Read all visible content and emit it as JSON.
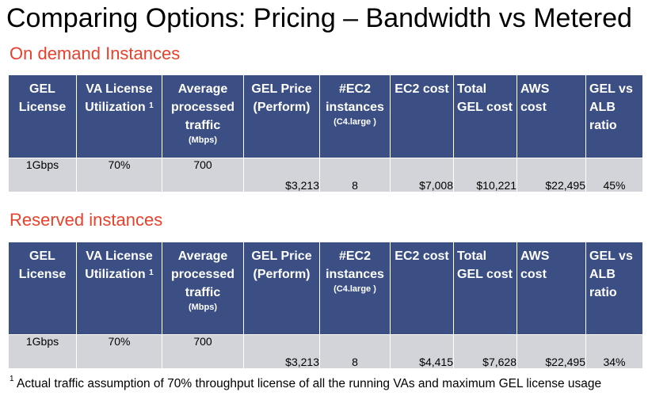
{
  "title": "Comparing Options: Pricing – Bandwidth vs Metered",
  "headers": {
    "gel_license": [
      "GEL",
      "License"
    ],
    "va_license": [
      "VA License",
      "Utilization"
    ],
    "va_license_sup": "1",
    "avg_traffic": [
      "Average",
      "processed",
      "traffic"
    ],
    "avg_traffic_unit": "(Mbps)",
    "gel_price": [
      "GEL Price",
      "(Perform)"
    ],
    "ec2_count": [
      "#EC2",
      "instances"
    ],
    "ec2_count_sub": "(C4.large )",
    "ec2_cost": "EC2 cost",
    "total_gel": [
      "Total",
      "GEL cost"
    ],
    "aws_cost": [
      "AWS",
      "cost"
    ],
    "ratio": [
      "GEL vs",
      "ALB",
      "ratio"
    ]
  },
  "tables": [
    {
      "section_label": "On demand Instances",
      "row": {
        "gel_license": "1Gbps",
        "va_utilization": "70%",
        "avg_traffic": "700",
        "gel_price": "$3,213",
        "ec2_instances": "8",
        "ec2_cost": "$7,008",
        "total_gel_cost": "$10,221",
        "aws_cost": "$22,495",
        "ratio": "45%"
      }
    },
    {
      "section_label": "Reserved instances",
      "row": {
        "gel_license": "1Gbps",
        "va_utilization": "70%",
        "avg_traffic": "700",
        "gel_price": "$3,213",
        "ec2_instances": "8",
        "ec2_cost": "$4,415",
        "total_gel_cost": "$7,628",
        "aws_cost": "$22,495",
        "ratio": "34%"
      }
    }
  ],
  "footnote": {
    "marker": "1",
    "text": "Actual traffic assumption of 70% throughput license of all the running VAs and maximum GEL license usage"
  },
  "colors": {
    "header_bg": "#3b4f85",
    "row_bg": "#d3d4d9",
    "section_label": "#e8412c"
  }
}
